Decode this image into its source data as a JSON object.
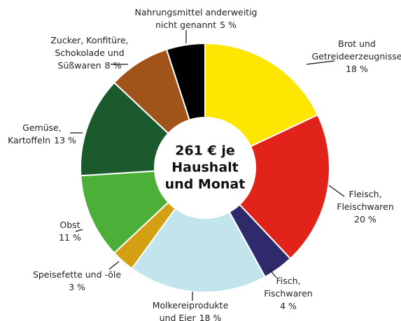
{
  "chart_data": {
    "type": "donut",
    "center_label": [
      "261 € je",
      "Haushalt",
      "und Monat"
    ],
    "categories": [
      [
        "Brot und",
        "Getreideerzeugnisse"
      ],
      [
        "Fleisch,",
        "Fleischwaren"
      ],
      [
        "Fisch,",
        "Fischwaren"
      ],
      [
        "Molkereiprodukte",
        "und Eier"
      ],
      [
        "Speisefette und -öle"
      ],
      [
        "Obst"
      ],
      [
        "Gemüse,",
        "Kartoffeln"
      ],
      [
        "Zucker, Konfitüre,",
        "Schokolade und",
        "Süßwaren"
      ],
      [
        "Nahrungsmittel anderweitig",
        "nicht genannt"
      ]
    ],
    "values": [
      18,
      20,
      4,
      18,
      3,
      11,
      13,
      8,
      5
    ],
    "value_labels": [
      "18 %",
      "20 %",
      "4 %",
      "18 %",
      "3 %",
      "11 %",
      "13 %",
      "8 %",
      "5 %"
    ],
    "colors": [
      "#ffe600",
      "#e2231a",
      "#2e2a6b",
      "#c2e4ed",
      "#d4a012",
      "#4caf38",
      "#1b5a2c",
      "#a0541a",
      "#000000"
    ]
  }
}
